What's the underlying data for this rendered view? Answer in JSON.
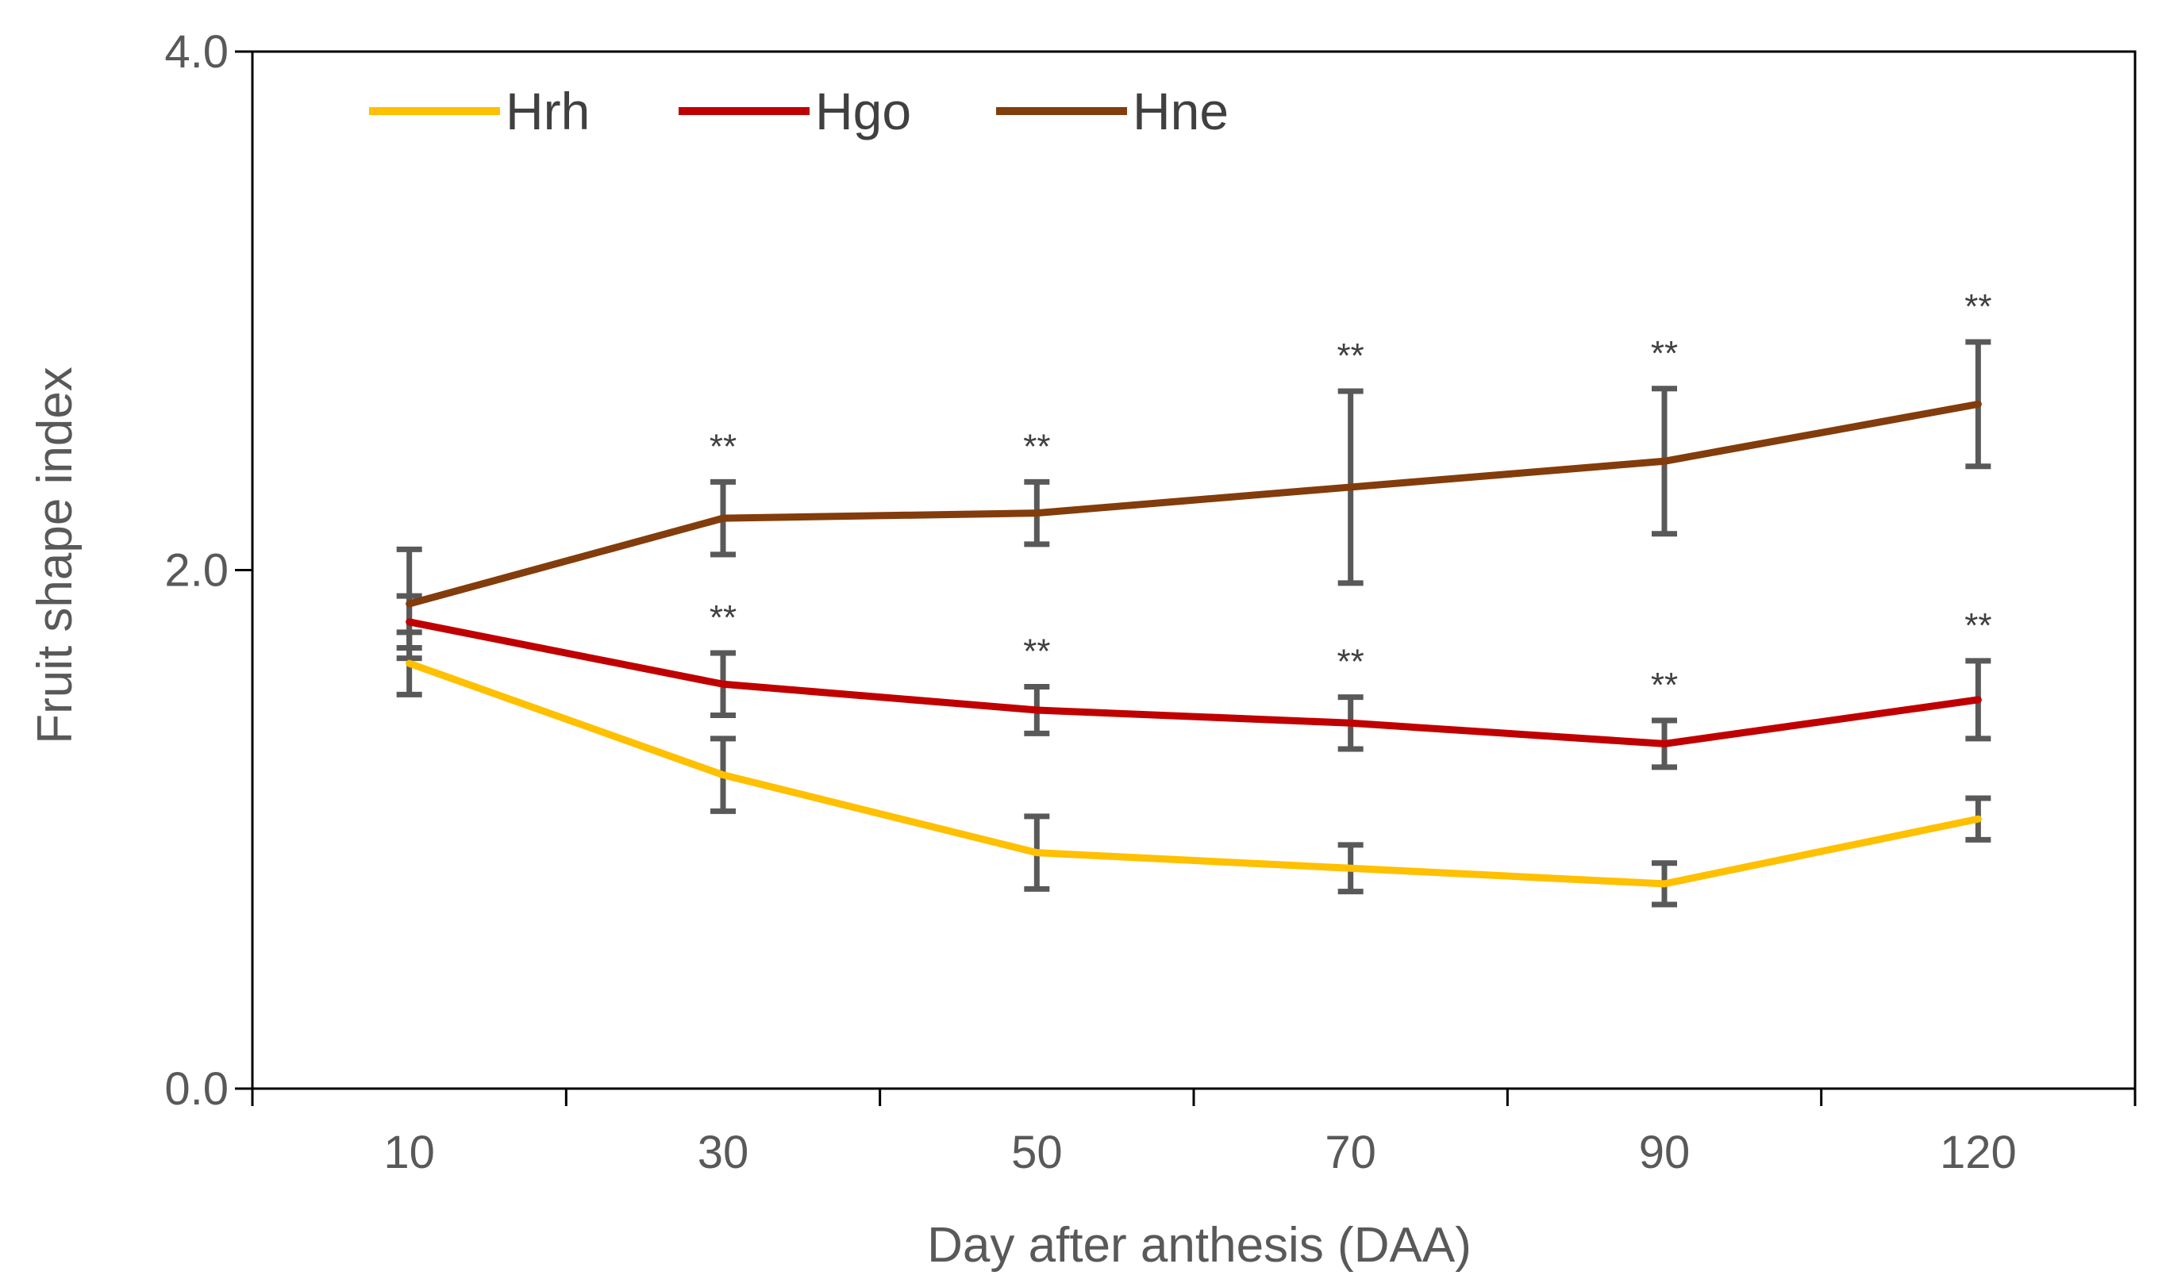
{
  "chart_data": {
    "type": "line",
    "title": "",
    "xlabel": "Day after anthesis (DAA)",
    "ylabel": "Fruit shape index",
    "x": [
      "10",
      "30",
      "50",
      "70",
      "90",
      "120"
    ],
    "ylim": [
      0,
      4
    ],
    "yticks": [
      "0.0",
      "2.0",
      "4.0"
    ],
    "grid": false,
    "legend_position": "top-left",
    "series": [
      {
        "name": "Hrh",
        "color": "#FFC000",
        "values": [
          1.64,
          1.21,
          0.91,
          0.85,
          0.79,
          1.04
        ],
        "errors": [
          0.12,
          0.14,
          0.14,
          0.09,
          0.08,
          0.08
        ],
        "significance": [
          "",
          "",
          "",
          "",
          "",
          ""
        ]
      },
      {
        "name": "Hgo",
        "color": "#C00000",
        "values": [
          1.8,
          1.56,
          1.46,
          1.41,
          1.33,
          1.5
        ],
        "errors": [
          0.1,
          0.12,
          0.09,
          0.1,
          0.09,
          0.15
        ],
        "significance": [
          "",
          "**",
          "**",
          "**",
          "**",
          "**"
        ]
      },
      {
        "name": "Hne",
        "color": "#833C0B",
        "values": [
          1.87,
          2.2,
          2.22,
          2.32,
          2.42,
          2.64
        ],
        "errors": [
          0.21,
          0.14,
          0.12,
          0.37,
          0.28,
          0.24
        ],
        "significance": [
          "",
          "**",
          "**",
          "**",
          "**",
          "**"
        ]
      }
    ]
  }
}
